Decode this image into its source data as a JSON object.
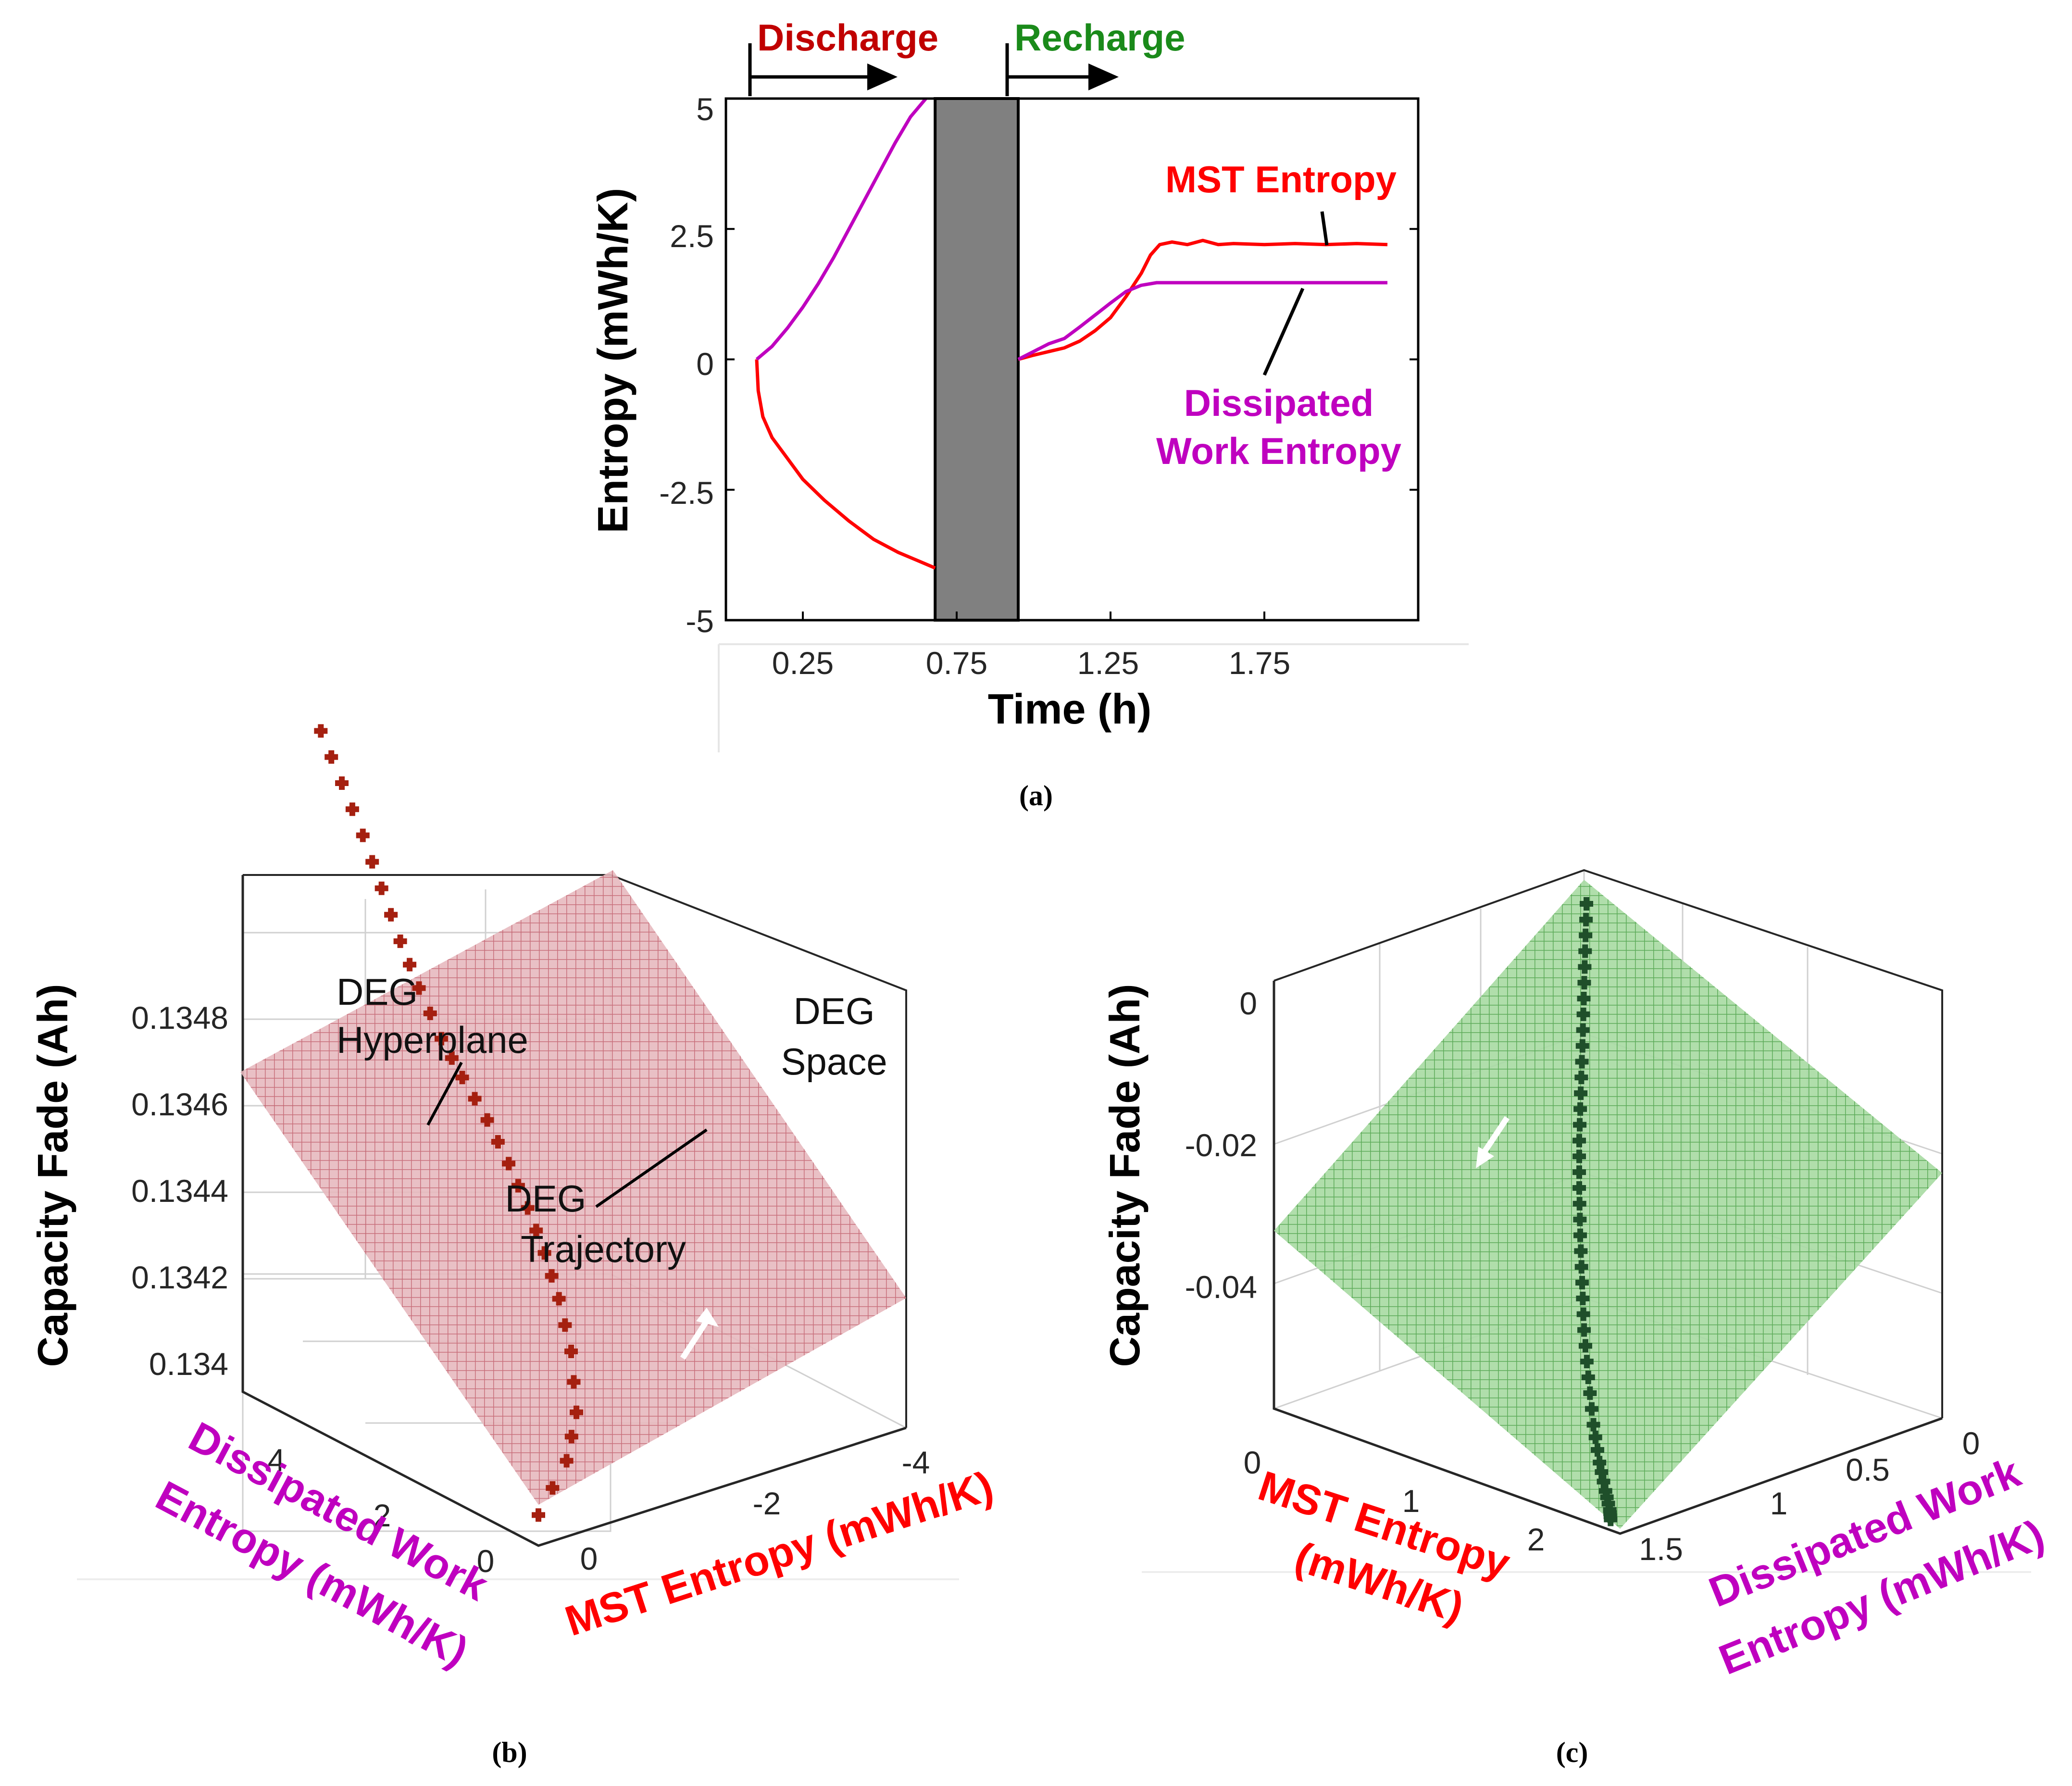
{
  "colors": {
    "mst": "#ff0000",
    "dissipated": "#bf00bf",
    "discharge": "#c00000",
    "recharge": "#1a8a1a",
    "rest_band": "#808080",
    "plane_b": "#d98a93",
    "traj_b": "#a52010",
    "plane_c": "#7fc77f",
    "traj_c": "#1f4f2a"
  },
  "chart_data": [
    {
      "id": "a",
      "type": "line",
      "caption": "(a)",
      "xlabel": "Time (h)",
      "ylabel": "Entropy (mWh/K)",
      "xlim": [
        0,
        2.25
      ],
      "ylim": [
        -5,
        5
      ],
      "xticks": [
        "0.25",
        "0.75",
        "1.25",
        "1.75"
      ],
      "yticks": [
        "5",
        "2.5",
        "0",
        "-2.5",
        "-5"
      ],
      "phase_labels": {
        "discharge": "Discharge",
        "recharge": "Recharge"
      },
      "rest_band": [
        0.68,
        0.95
      ],
      "annotations": {
        "mst": "MST Entropy",
        "dissipated_line1": "Dissipated",
        "dissipated_line2": "Work Entropy"
      },
      "series": [
        {
          "name": "MST Entropy",
          "segments": [
            [
              [
                0.1,
                0
              ],
              [
                0.105,
                -0.6
              ],
              [
                0.12,
                -1.1
              ],
              [
                0.15,
                -1.5
              ],
              [
                0.2,
                -1.9
              ],
              [
                0.25,
                -2.3
              ],
              [
                0.32,
                -2.7
              ],
              [
                0.4,
                -3.1
              ],
              [
                0.48,
                -3.45
              ],
              [
                0.56,
                -3.7
              ],
              [
                0.62,
                -3.85
              ],
              [
                0.68,
                -4.0
              ]
            ],
            [
              [
                0.95,
                0
              ],
              [
                1.0,
                0.08
              ],
              [
                1.05,
                0.15
              ],
              [
                1.1,
                0.22
              ],
              [
                1.15,
                0.35
              ],
              [
                1.2,
                0.55
              ],
              [
                1.25,
                0.8
              ],
              [
                1.3,
                1.2
              ],
              [
                1.35,
                1.65
              ],
              [
                1.38,
                2.0
              ],
              [
                1.41,
                2.2
              ],
              [
                1.45,
                2.25
              ],
              [
                1.5,
                2.2
              ],
              [
                1.55,
                2.28
              ],
              [
                1.6,
                2.2
              ],
              [
                1.65,
                2.22
              ],
              [
                1.75,
                2.2
              ],
              [
                1.85,
                2.22
              ],
              [
                1.95,
                2.2
              ],
              [
                2.05,
                2.22
              ],
              [
                2.15,
                2.2
              ]
            ]
          ]
        },
        {
          "name": "Dissipated Work Entropy",
          "segments": [
            [
              [
                0.1,
                0
              ],
              [
                0.15,
                0.25
              ],
              [
                0.2,
                0.6
              ],
              [
                0.25,
                1.0
              ],
              [
                0.3,
                1.45
              ],
              [
                0.35,
                1.95
              ],
              [
                0.4,
                2.5
              ],
              [
                0.45,
                3.05
              ],
              [
                0.5,
                3.6
              ],
              [
                0.55,
                4.15
              ],
              [
                0.6,
                4.65
              ],
              [
                0.65,
                5.0
              ]
            ],
            [
              [
                0.95,
                0
              ],
              [
                1.0,
                0.15
              ],
              [
                1.05,
                0.3
              ],
              [
                1.1,
                0.4
              ],
              [
                1.15,
                0.62
              ],
              [
                1.2,
                0.85
              ],
              [
                1.25,
                1.08
              ],
              [
                1.3,
                1.3
              ],
              [
                1.35,
                1.42
              ],
              [
                1.4,
                1.47
              ],
              [
                1.5,
                1.47
              ],
              [
                1.7,
                1.47
              ],
              [
                1.9,
                1.47
              ],
              [
                2.15,
                1.47
              ]
            ]
          ]
        }
      ]
    },
    {
      "id": "b",
      "type": "scatter",
      "projection": "3d",
      "caption": "(b)",
      "zlabel": "Capacity Fade (Ah)",
      "xlabel_line1": "Dissipated Work",
      "xlabel_line2": "Entropy (mWh/K)",
      "ylabel": "MST Entropy (mWh/K)",
      "zticks": [
        "0.1348",
        "0.1346",
        "0.1344",
        "0.1342",
        "0.134"
      ],
      "xticks": [
        "4",
        "2",
        "0"
      ],
      "yticks": [
        "0",
        "-2",
        "-4"
      ],
      "annotations": {
        "hyperplane_line1": "DEG",
        "hyperplane_line2": "Hyperplane",
        "space_line1": "DEG",
        "space_line2": "Space",
        "trajectory_line1": "DEG",
        "trajectory_line2": "Trajectory"
      },
      "series": [
        {
          "name": "DEG Trajectory",
          "points": [
            [
              0,
              0,
              0.13395
            ],
            [
              0.3,
              -1.0,
              0.134
            ],
            [
              0.6,
              -1.6,
              0.13405
            ],
            [
              1.0,
              -2.0,
              0.13412
            ],
            [
              1.4,
              -2.25,
              0.13418
            ],
            [
              1.8,
              -2.45,
              0.13423
            ],
            [
              2.2,
              -2.6,
              0.13428
            ],
            [
              2.6,
              -2.7,
              0.13433
            ],
            [
              3.0,
              -2.75,
              0.13438
            ],
            [
              3.4,
              -2.72,
              0.13443
            ],
            [
              3.7,
              -2.65,
              0.13448
            ],
            [
              4.0,
              -2.55,
              0.13455
            ],
            [
              4.2,
              -2.4,
              0.13462
            ],
            [
              4.4,
              -2.25,
              0.1347
            ],
            [
              4.6,
              -2.1,
              0.13478
            ],
            [
              4.8,
              -1.9,
              0.13486
            ],
            [
              5.0,
              -1.7,
              0.13494
            ]
          ]
        }
      ]
    },
    {
      "id": "c",
      "type": "scatter",
      "projection": "3d",
      "caption": "(c)",
      "zlabel": "Capacity Fade (Ah)",
      "xlabel_line1": "MST Entropy",
      "xlabel_line2": "(mWh/K)",
      "ylabel_line1": "Dissipated Work",
      "ylabel_line2": "Entropy (mWh/K)",
      "zticks": [
        "0",
        "-0.02",
        "-0.04"
      ],
      "xticks": [
        "0",
        "1",
        "2"
      ],
      "yticks": [
        "0",
        "0.5",
        "1",
        "1.5"
      ],
      "series": [
        {
          "name": "DEG Trajectory",
          "points": [
            [
              0,
              0,
              0.003
            ],
            [
              0.1,
              0.05,
              -0.002
            ],
            [
              0.2,
              0.1,
              -0.007
            ],
            [
              0.3,
              0.15,
              -0.012
            ],
            [
              0.35,
              0.22,
              -0.017
            ],
            [
              0.4,
              0.3,
              -0.022
            ],
            [
              0.5,
              0.4,
              -0.027
            ],
            [
              0.65,
              0.5,
              -0.032
            ],
            [
              0.85,
              0.6,
              -0.037
            ],
            [
              1.05,
              0.7,
              -0.042
            ],
            [
              1.3,
              0.85,
              -0.047
            ],
            [
              1.6,
              1.0,
              -0.052
            ],
            [
              1.9,
              1.15,
              -0.056
            ],
            [
              2.15,
              1.3,
              -0.059
            ],
            [
              2.3,
              1.42,
              -0.061
            ],
            [
              2.35,
              1.45,
              -0.062
            ]
          ]
        }
      ]
    }
  ]
}
